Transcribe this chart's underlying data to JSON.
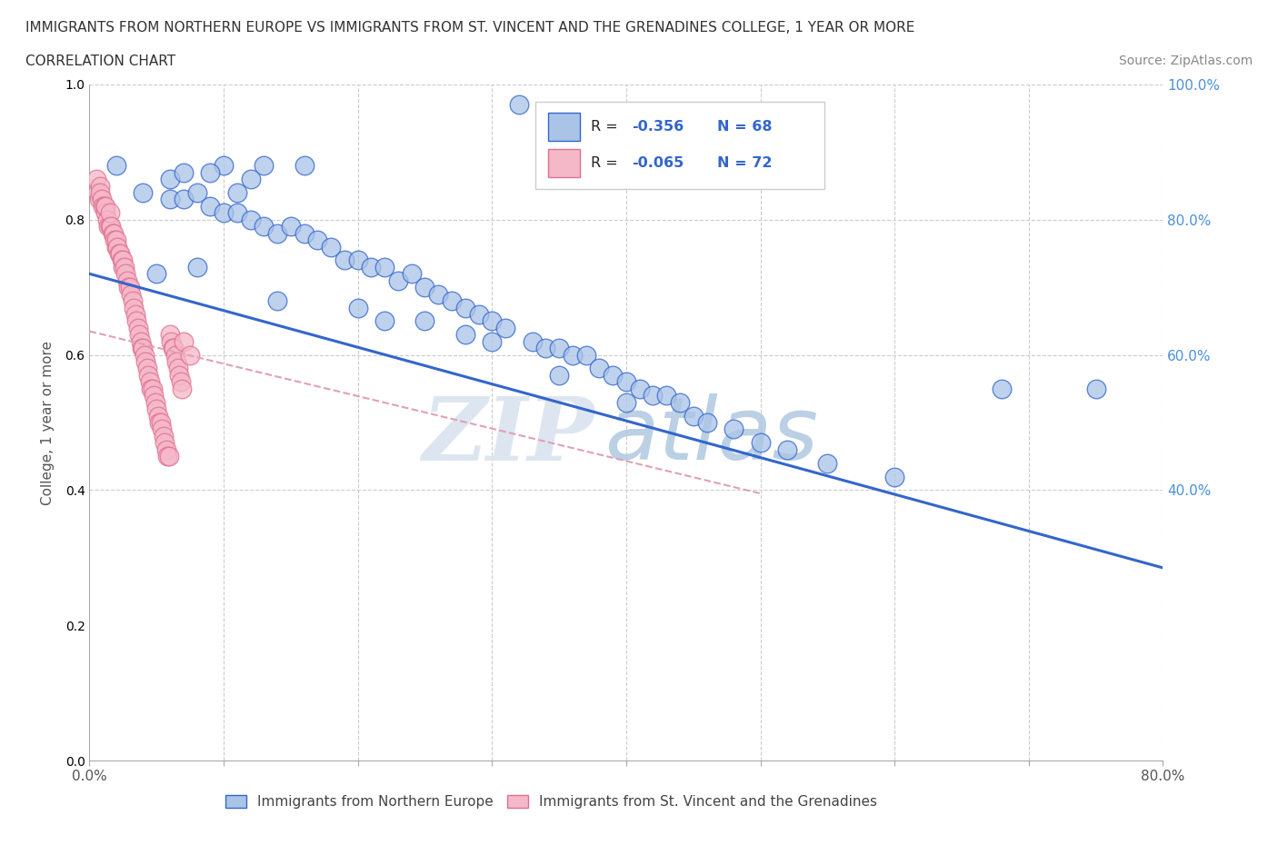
{
  "title_line1": "IMMIGRANTS FROM NORTHERN EUROPE VS IMMIGRANTS FROM ST. VINCENT AND THE GRENADINES COLLEGE, 1 YEAR OR MORE",
  "title_line2": "CORRELATION CHART",
  "source": "Source: ZipAtlas.com",
  "ylabel": "College, 1 year or more",
  "xlim": [
    0.0,
    0.8
  ],
  "ylim": [
    0.0,
    1.0
  ],
  "color_blue": "#aac4e8",
  "color_pink": "#f5b8c8",
  "line_blue": "#3366cc",
  "line_pink_trend": "#d4a0b0",
  "watermark_zip": "ZIP",
  "watermark_atlas": "atlas",
  "legend_label1": "Immigrants from Northern Europe",
  "legend_label2": "Immigrants from St. Vincent and the Grenadines",
  "blue_scatter_x": [
    0.32,
    0.02,
    0.1,
    0.13,
    0.16,
    0.04,
    0.06,
    0.07,
    0.09,
    0.12,
    0.06,
    0.07,
    0.08,
    0.09,
    0.1,
    0.11,
    0.11,
    0.12,
    0.13,
    0.14,
    0.15,
    0.16,
    0.17,
    0.18,
    0.19,
    0.2,
    0.21,
    0.22,
    0.23,
    0.24,
    0.25,
    0.26,
    0.27,
    0.28,
    0.29,
    0.3,
    0.31,
    0.33,
    0.34,
    0.35,
    0.36,
    0.37,
    0.38,
    0.39,
    0.4,
    0.41,
    0.42,
    0.43,
    0.44,
    0.45,
    0.46,
    0.48,
    0.5,
    0.52,
    0.55,
    0.6,
    0.68,
    0.75,
    0.28,
    0.22,
    0.14,
    0.2,
    0.25,
    0.3,
    0.35,
    0.4,
    0.08,
    0.05
  ],
  "blue_scatter_y": [
    0.97,
    0.88,
    0.88,
    0.88,
    0.88,
    0.84,
    0.86,
    0.87,
    0.87,
    0.86,
    0.83,
    0.83,
    0.84,
    0.82,
    0.81,
    0.84,
    0.81,
    0.8,
    0.79,
    0.78,
    0.79,
    0.78,
    0.77,
    0.76,
    0.74,
    0.74,
    0.73,
    0.73,
    0.71,
    0.72,
    0.7,
    0.69,
    0.68,
    0.67,
    0.66,
    0.65,
    0.64,
    0.62,
    0.61,
    0.61,
    0.6,
    0.6,
    0.58,
    0.57,
    0.56,
    0.55,
    0.54,
    0.54,
    0.53,
    0.51,
    0.5,
    0.49,
    0.47,
    0.46,
    0.44,
    0.42,
    0.55,
    0.55,
    0.63,
    0.65,
    0.68,
    0.67,
    0.65,
    0.62,
    0.57,
    0.53,
    0.73,
    0.72
  ],
  "pink_scatter_x": [
    0.005,
    0.006,
    0.007,
    0.008,
    0.008,
    0.009,
    0.01,
    0.011,
    0.012,
    0.012,
    0.013,
    0.014,
    0.015,
    0.015,
    0.016,
    0.017,
    0.018,
    0.019,
    0.02,
    0.02,
    0.021,
    0.022,
    0.023,
    0.024,
    0.025,
    0.025,
    0.026,
    0.027,
    0.028,
    0.029,
    0.03,
    0.031,
    0.032,
    0.033,
    0.034,
    0.035,
    0.036,
    0.037,
    0.038,
    0.039,
    0.04,
    0.041,
    0.042,
    0.043,
    0.044,
    0.045,
    0.046,
    0.047,
    0.048,
    0.049,
    0.05,
    0.051,
    0.052,
    0.053,
    0.054,
    0.055,
    0.056,
    0.057,
    0.058,
    0.059,
    0.06,
    0.061,
    0.062,
    0.063,
    0.064,
    0.065,
    0.066,
    0.067,
    0.068,
    0.069,
    0.07,
    0.075
  ],
  "pink_scatter_y": [
    0.86,
    0.84,
    0.83,
    0.85,
    0.84,
    0.83,
    0.82,
    0.82,
    0.81,
    0.82,
    0.8,
    0.79,
    0.79,
    0.81,
    0.79,
    0.78,
    0.78,
    0.77,
    0.76,
    0.77,
    0.76,
    0.75,
    0.75,
    0.74,
    0.73,
    0.74,
    0.73,
    0.72,
    0.71,
    0.7,
    0.7,
    0.69,
    0.68,
    0.67,
    0.66,
    0.65,
    0.64,
    0.63,
    0.62,
    0.61,
    0.61,
    0.6,
    0.59,
    0.58,
    0.57,
    0.56,
    0.55,
    0.55,
    0.54,
    0.53,
    0.52,
    0.51,
    0.5,
    0.5,
    0.49,
    0.48,
    0.47,
    0.46,
    0.45,
    0.45,
    0.63,
    0.62,
    0.61,
    0.61,
    0.6,
    0.59,
    0.58,
    0.57,
    0.56,
    0.55,
    0.62,
    0.6
  ],
  "blue_trend_x": [
    0.0,
    0.8
  ],
  "blue_trend_y": [
    0.72,
    0.285
  ],
  "pink_trend_x": [
    0.0,
    0.5
  ],
  "pink_trend_y": [
    0.635,
    0.395
  ]
}
